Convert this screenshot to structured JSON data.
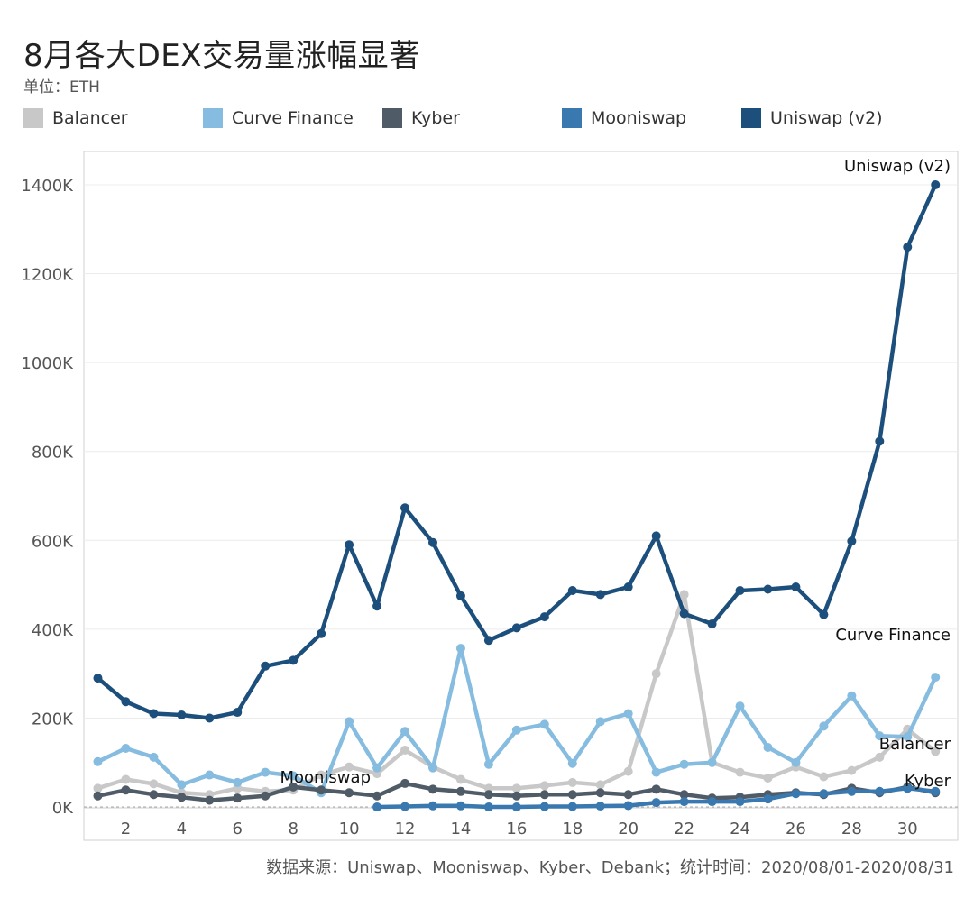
{
  "title": "8月各大DEX交易量涨幅显著",
  "unit_label": "单位：ETH",
  "source": "数据来源：Uniswap、Mooniswap、Kyber、Debank；统计时间：2020/08/01-2020/08/31",
  "colors": {
    "balancer": "#c8c8c8",
    "curve": "#86bcdf",
    "kyber": "#4f5b66",
    "mooniswap": "#3a78b0",
    "uniswap": "#1d4f7c",
    "grid": "#ececec",
    "axis": "#d0d0d0"
  },
  "chart_data": {
    "type": "line",
    "title": "8月各大DEX交易量涨幅显著",
    "xlabel": "",
    "ylabel": "单位：ETH",
    "xlim": [
      0.5,
      31.8
    ],
    "ylim": [
      -75000,
      1475000
    ],
    "x_ticks": [
      2,
      4,
      6,
      8,
      10,
      12,
      14,
      16,
      18,
      20,
      22,
      24,
      26,
      28,
      30
    ],
    "y_ticks": [
      0,
      200000,
      400000,
      600000,
      800000,
      1000000,
      1200000,
      1400000
    ],
    "y_tick_labels": [
      "0K",
      "200K",
      "400K",
      "600K",
      "800K",
      "1000K",
      "1200K",
      "1400K"
    ],
    "legend_position": "top",
    "series": [
      {
        "key": "balancer",
        "name": "Balancer",
        "x": [
          1,
          2,
          3,
          4,
          5,
          6,
          7,
          8,
          9,
          10,
          11,
          12,
          13,
          14,
          15,
          16,
          17,
          18,
          19,
          20,
          21,
          22,
          23,
          24,
          25,
          26,
          27,
          28,
          29,
          30,
          31
        ],
        "values": [
          42000,
          62000,
          52000,
          32000,
          28000,
          42000,
          35000,
          38000,
          72000,
          90000,
          75000,
          128000,
          90000,
          62000,
          42000,
          42000,
          48000,
          55000,
          50000,
          80000,
          300000,
          478000,
          100000,
          78000,
          65000,
          90000,
          68000,
          82000,
          112000,
          175000,
          125000
        ],
        "end_label": "Balancer"
      },
      {
        "key": "curve",
        "name": "Curve Finance",
        "x": [
          1,
          2,
          3,
          4,
          5,
          6,
          7,
          8,
          9,
          10,
          11,
          12,
          13,
          14,
          15,
          16,
          17,
          18,
          19,
          20,
          21,
          22,
          23,
          24,
          25,
          26,
          27,
          28,
          29,
          30,
          31
        ],
        "values": [
          102000,
          132000,
          112000,
          50000,
          72000,
          55000,
          78000,
          70000,
          32000,
          192000,
          88000,
          170000,
          88000,
          357000,
          96000,
          173000,
          186000,
          98000,
          192000,
          210000,
          78000,
          96000,
          100000,
          227000,
          134000,
          100000,
          182000,
          250000,
          160000,
          158000,
          292000
        ],
        "end_label": "Curve Finance"
      },
      {
        "key": "kyber",
        "name": "Kyber",
        "x": [
          1,
          2,
          3,
          4,
          5,
          6,
          7,
          8,
          9,
          10,
          11,
          12,
          13,
          14,
          15,
          16,
          17,
          18,
          19,
          20,
          21,
          22,
          23,
          24,
          25,
          26,
          27,
          28,
          29,
          30,
          31
        ],
        "values": [
          25000,
          38000,
          28000,
          22000,
          15000,
          20000,
          25000,
          45000,
          38000,
          32000,
          25000,
          53000,
          40000,
          35000,
          28000,
          25000,
          28000,
          28000,
          32000,
          28000,
          40000,
          28000,
          20000,
          22000,
          28000,
          32000,
          28000,
          42000,
          32000,
          45000,
          32000
        ],
        "end_label": "Kyber"
      },
      {
        "key": "mooniswap",
        "name": "Mooniswap",
        "x": [
          11,
          12,
          13,
          14,
          15,
          16,
          17,
          18,
          19,
          20,
          21,
          22,
          23,
          24,
          25,
          26,
          27,
          28,
          29,
          30,
          31
        ],
        "values": [
          0,
          1000,
          2500,
          2500,
          0,
          0,
          1000,
          1000,
          2000,
          3000,
          10000,
          12000,
          12000,
          12000,
          18000,
          30000,
          30000,
          35000,
          35000,
          42000,
          35000
        ],
        "start_label": "Mooniswap"
      },
      {
        "key": "uniswap",
        "name": "Uniswap (v2)",
        "x": [
          1,
          2,
          3,
          4,
          5,
          6,
          7,
          8,
          9,
          10,
          11,
          12,
          13,
          14,
          15,
          16,
          17,
          18,
          19,
          20,
          21,
          22,
          23,
          24,
          25,
          26,
          27,
          28,
          29,
          30,
          31
        ],
        "values": [
          290000,
          237000,
          210000,
          207000,
          200000,
          213000,
          317000,
          330000,
          390000,
          590000,
          452000,
          673000,
          595000,
          475000,
          375000,
          403000,
          428000,
          487000,
          478000,
          495000,
          610000,
          435000,
          412000,
          487000,
          490000,
          495000,
          433000,
          598000,
          823000,
          1260000,
          1400000
        ],
        "end_label": "Uniswap (v2)"
      }
    ]
  }
}
